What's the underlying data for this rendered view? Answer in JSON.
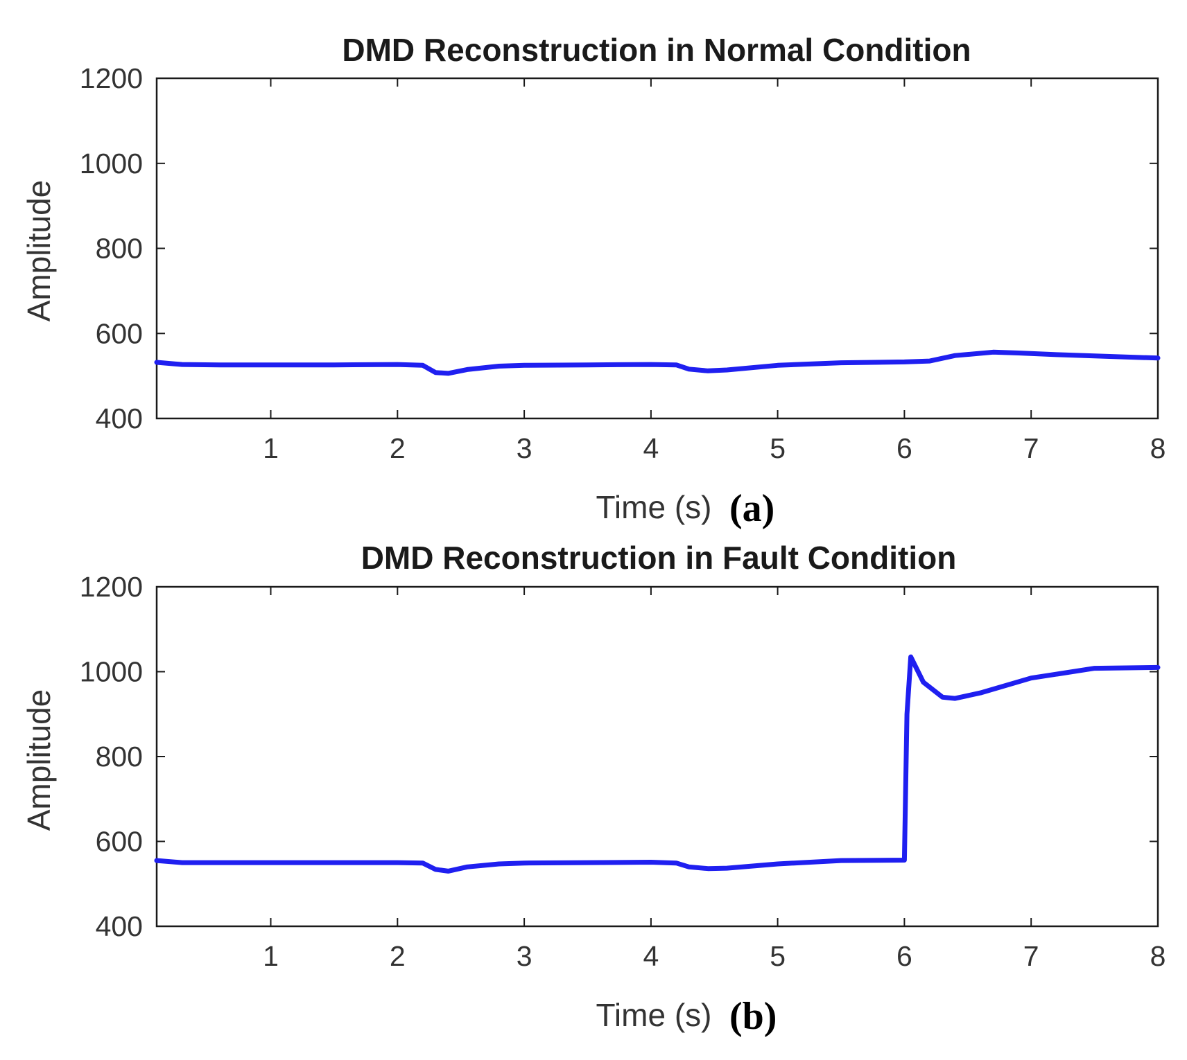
{
  "colors": {
    "series": "#1f1ff0"
  },
  "chart_data": [
    {
      "type": "line",
      "panel_label": "(a)",
      "title": "DMD Reconstruction in Normal Condition",
      "xlabel": "Time (s)",
      "ylabel": "Amplitude",
      "xlim": [
        0.1,
        8
      ],
      "ylim": [
        400,
        1200
      ],
      "xticks": [
        1,
        2,
        3,
        4,
        5,
        6,
        7,
        8
      ],
      "yticks": [
        400,
        600,
        800,
        1000,
        1200
      ],
      "xtick_labels": [
        "1",
        "2",
        "3",
        "4",
        "5",
        "6",
        "7",
        "8"
      ],
      "ytick_labels": [
        "400",
        "600",
        "800",
        "1000",
        "1200"
      ],
      "grid": true,
      "series": [
        {
          "name": "DMD reconstruction",
          "x": [
            0.1,
            0.3,
            0.6,
            1.0,
            1.5,
            2.0,
            2.2,
            2.3,
            2.4,
            2.55,
            2.8,
            3.0,
            3.5,
            4.0,
            4.2,
            4.3,
            4.45,
            4.6,
            5.0,
            5.5,
            6.0,
            6.2,
            6.4,
            6.7,
            6.9,
            7.2,
            7.6,
            8.0
          ],
          "y": [
            532,
            527,
            526,
            526,
            526,
            527,
            525,
            508,
            506,
            515,
            523,
            525,
            526,
            527,
            526,
            516,
            512,
            514,
            525,
            531,
            533,
            535,
            548,
            556,
            554,
            550,
            546,
            542
          ]
        }
      ]
    },
    {
      "type": "line",
      "panel_label": "(b)",
      "title": "DMD Reconstruction in Fault Condition",
      "xlabel": "Time (s)",
      "ylabel": "Amplitude",
      "xlim": [
        0.1,
        8
      ],
      "ylim": [
        400,
        1200
      ],
      "xticks": [
        1,
        2,
        3,
        4,
        5,
        6,
        7,
        8
      ],
      "yticks": [
        400,
        600,
        800,
        1000,
        1200
      ],
      "xtick_labels": [
        "1",
        "2",
        "3",
        "4",
        "5",
        "6",
        "7",
        "8"
      ],
      "ytick_labels": [
        "400",
        "600",
        "800",
        "1000",
        "1200"
      ],
      "grid": true,
      "series": [
        {
          "name": "DMD reconstruction",
          "x": [
            0.1,
            0.3,
            0.6,
            1.0,
            1.5,
            2.0,
            2.2,
            2.3,
            2.4,
            2.55,
            2.8,
            3.0,
            3.5,
            4.0,
            4.2,
            4.3,
            4.45,
            4.6,
            5.0,
            5.5,
            6.0,
            6.02,
            6.05,
            6.15,
            6.3,
            6.4,
            6.6,
            7.0,
            7.5,
            8.0
          ],
          "y": [
            555,
            550,
            550,
            550,
            550,
            550,
            549,
            534,
            530,
            540,
            547,
            549,
            550,
            551,
            549,
            540,
            536,
            537,
            547,
            555,
            556,
            900,
            1035,
            975,
            940,
            937,
            950,
            985,
            1008,
            1010
          ]
        }
      ]
    }
  ]
}
